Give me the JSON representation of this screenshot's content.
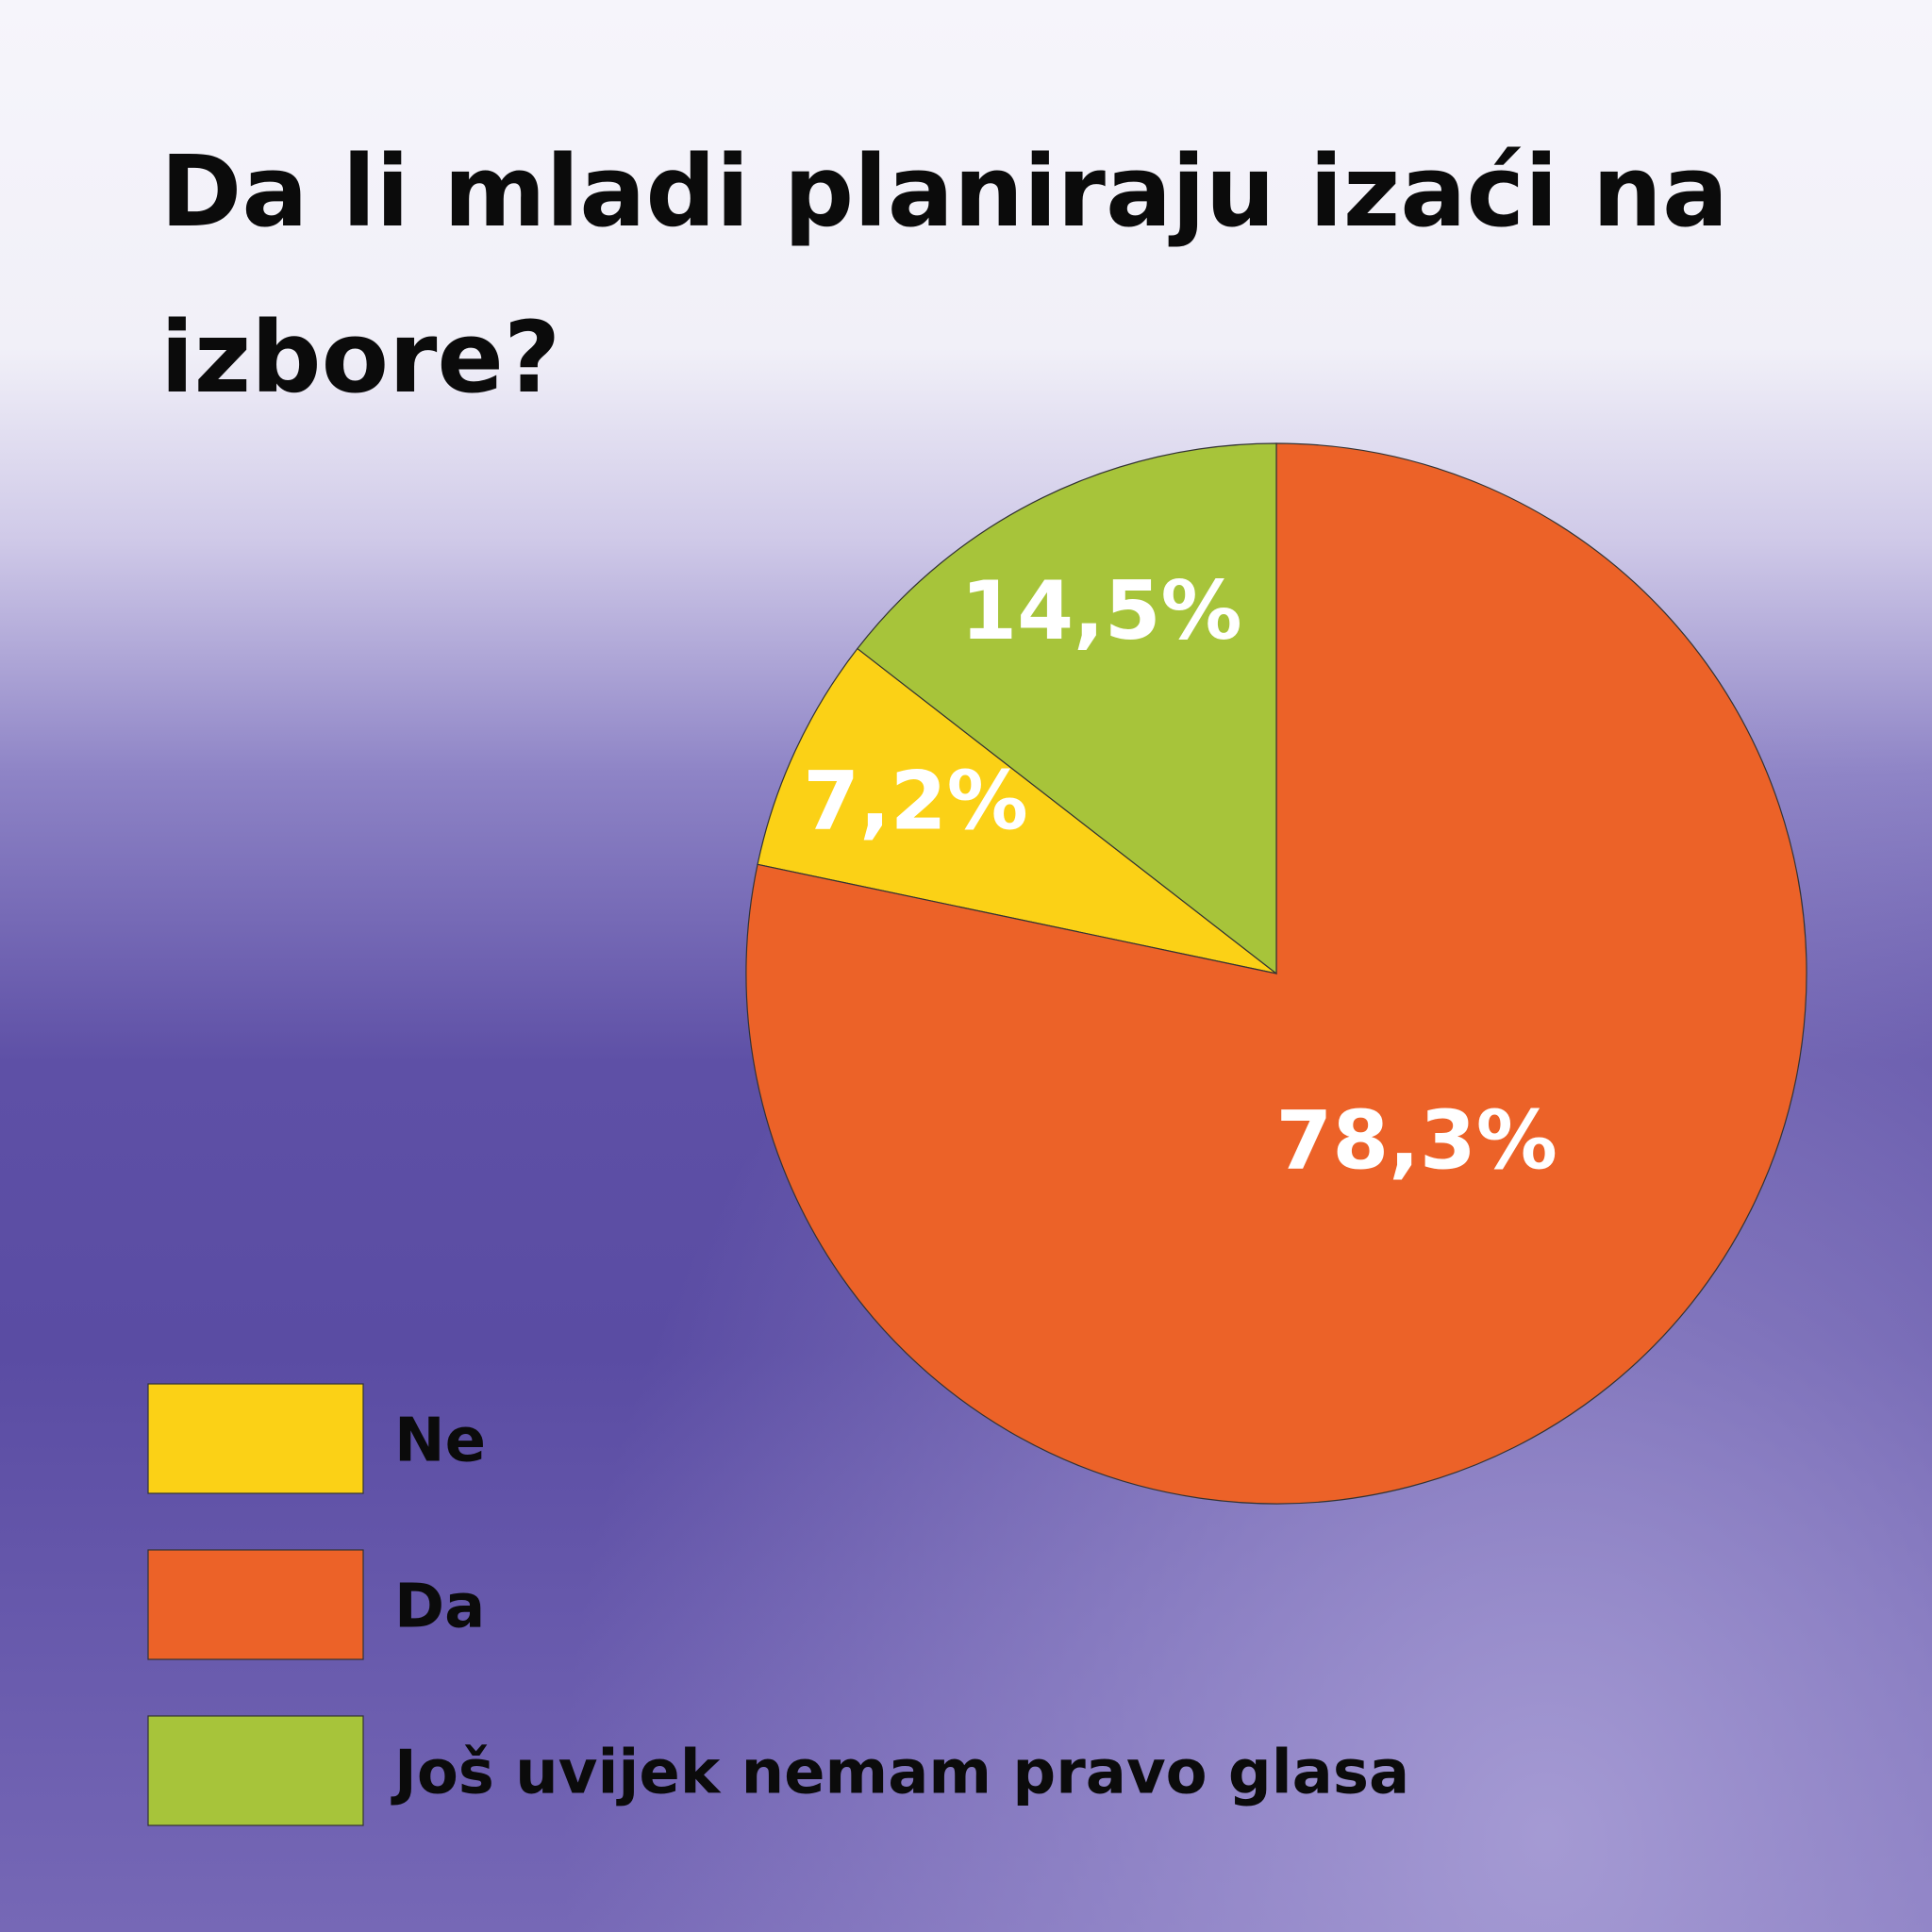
{
  "chart_data": {
    "type": "pie",
    "title": "Da li mladi planiraju izaći na izbore?",
    "categories": [
      "Ne",
      "Da",
      "Još uvijek nemam pravo glasa"
    ],
    "values": [
      7.2,
      78.3,
      14.5
    ],
    "value_labels": [
      "7,2%",
      "78,3%",
      "14,5%"
    ],
    "colors": [
      "#fbd116",
      "#ec6228",
      "#a7c43a"
    ]
  }
}
